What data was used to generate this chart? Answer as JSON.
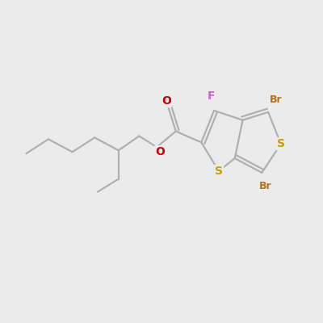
{
  "bg_color": "#ebebeb",
  "bond_color": "#b0b0b0",
  "line_width": 1.6,
  "atom_colors": {
    "S": "#c8a000",
    "Br": "#b87020",
    "F": "#d060d0",
    "O": "#cc0000"
  },
  "font_sizes": {
    "S": 10,
    "Br": 9,
    "F": 10,
    "O": 10
  }
}
